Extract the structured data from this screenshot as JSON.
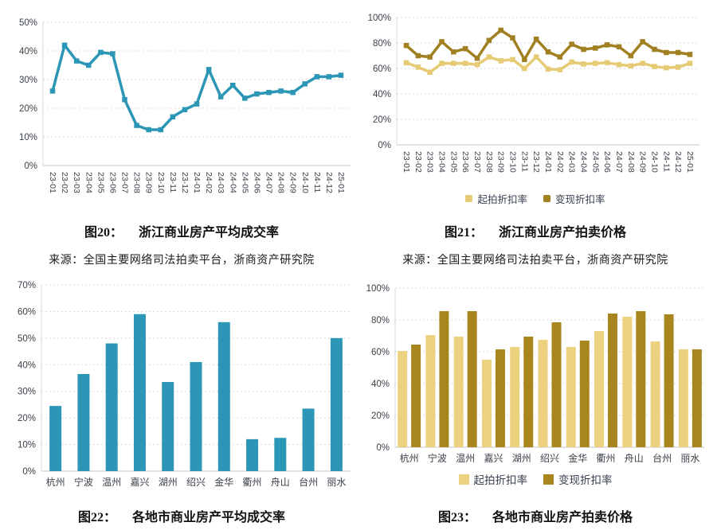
{
  "figures": {
    "fig20": {
      "caption_label": "图20：",
      "caption_title": "浙江商业房产平均成交率",
      "source": "来源：全国主要网络司法拍卖平台，浙商资产研究院"
    },
    "fig21": {
      "caption_label": "图21：",
      "caption_title": "浙江商业房产拍卖价格",
      "source": "来源：全国主要网络司法拍卖平台，浙商资产研究院"
    },
    "fig22": {
      "caption_label": "图22：",
      "caption_title": "各地市商业房产平均成交率"
    },
    "fig23": {
      "caption_label": "图23：",
      "caption_title": "各地市商业房产拍卖价格"
    }
  },
  "colors": {
    "teal": "#2B96B5",
    "light_gold_line": "#E6CB74",
    "dark_gold_line": "#A08020",
    "light_gold_bar": "#EBD180",
    "dark_gold_bar": "#A8861D",
    "grid": "#DADADA",
    "baseline": "#C6C6C6",
    "tick_text": "#3B4149"
  },
  "chart_data": [
    {
      "id": "fig20",
      "type": "line",
      "title": "图20： 浙江商业房产平均成交率",
      "xlabel": "",
      "ylabel": "",
      "ylim": [
        0,
        50
      ],
      "ytick": 10,
      "grid": true,
      "legend": false,
      "x": [
        "23-01",
        "23-02",
        "23-03",
        "23-04",
        "23-05",
        "23-06",
        "23-07",
        "23-08",
        "23-09",
        "23-10",
        "23-11",
        "23-12",
        "24-01",
        "24-02",
        "24-03",
        "24-04",
        "24-05",
        "24-06",
        "24-07",
        "24-08",
        "24-09",
        "24-10",
        "24-11",
        "24-12",
        "25-01"
      ],
      "series": [
        {
          "name": "平均成交率",
          "color": "#2B96B5",
          "values": [
            26,
            42,
            36.5,
            35,
            39.5,
            39,
            23,
            14,
            12.5,
            12.5,
            17,
            19.5,
            21.5,
            33.5,
            24,
            28,
            23.5,
            25,
            25.5,
            26,
            25.5,
            28.5,
            31,
            31,
            31.5
          ]
        }
      ]
    },
    {
      "id": "fig21",
      "type": "line",
      "title": "图21： 浙江商业房产拍卖价格",
      "xlabel": "",
      "ylabel": "",
      "ylim": [
        0,
        100
      ],
      "ytick": 20,
      "grid": true,
      "legend": true,
      "legend_position": "bottom",
      "x": [
        "23-01",
        "23-02",
        "23-03",
        "23-04",
        "23-05",
        "23-06",
        "23-07",
        "23-08",
        "23-09",
        "23-10",
        "23-11",
        "23-12",
        "24-01",
        "24-02",
        "24-03",
        "24-04",
        "24-05",
        "24-06",
        "24-07",
        "24-08",
        "24-09",
        "24-10",
        "24-11",
        "24-12",
        "25-01"
      ],
      "series": [
        {
          "name": "起拍折扣率",
          "color": "#E6CB74",
          "values": [
            64.5,
            61,
            57,
            64,
            64,
            64,
            63,
            69,
            66,
            67,
            60,
            69,
            59.5,
            59,
            65,
            63.5,
            64,
            64.5,
            63,
            62,
            64,
            61.5,
            60.5,
            61,
            64
          ]
        },
        {
          "name": "变现折扣率",
          "color": "#A08020",
          "values": [
            78,
            70,
            69,
            81,
            73,
            75.5,
            68,
            82,
            90,
            84,
            67,
            83,
            73,
            69,
            79,
            75,
            76,
            78.5,
            77,
            70,
            81,
            75,
            72.5,
            72.5,
            71
          ]
        }
      ]
    },
    {
      "id": "fig22",
      "type": "bar",
      "title": "图22： 各地市商业房产平均成交率",
      "xlabel": "",
      "ylabel": "",
      "ylim": [
        0,
        70
      ],
      "ytick": 10,
      "grid": true,
      "legend": false,
      "x": [
        "杭州",
        "宁波",
        "温州",
        "嘉兴",
        "湖州",
        "绍兴",
        "金华",
        "衢州",
        "舟山",
        "台州",
        "丽水"
      ],
      "series": [
        {
          "name": "平均成交率",
          "color": "#2B96B5",
          "values": [
            24.5,
            36.5,
            48,
            59,
            33.5,
            41,
            56,
            12,
            12.5,
            23.5,
            50
          ]
        }
      ]
    },
    {
      "id": "fig23",
      "type": "bar",
      "title": "图23： 各地市商业房产拍卖价格",
      "xlabel": "",
      "ylabel": "",
      "ylim": [
        0,
        100
      ],
      "ytick": 20,
      "grid": true,
      "legend": true,
      "legend_position": "bottom",
      "x": [
        "杭州",
        "宁波",
        "温州",
        "嘉兴",
        "湖州",
        "绍兴",
        "金华",
        "衢州",
        "舟山",
        "台州",
        "丽水"
      ],
      "series": [
        {
          "name": "起拍折扣率",
          "color": "#EBD180",
          "values": [
            60.5,
            70.5,
            69.5,
            55,
            63,
            67.5,
            63,
            73,
            82,
            66.5,
            61.5
          ]
        },
        {
          "name": "变现折扣率",
          "color": "#A8861D",
          "values": [
            64.5,
            85.5,
            85.5,
            61.5,
            69.5,
            78.5,
            67,
            84,
            85.5,
            83.5,
            61.5
          ]
        }
      ]
    }
  ]
}
